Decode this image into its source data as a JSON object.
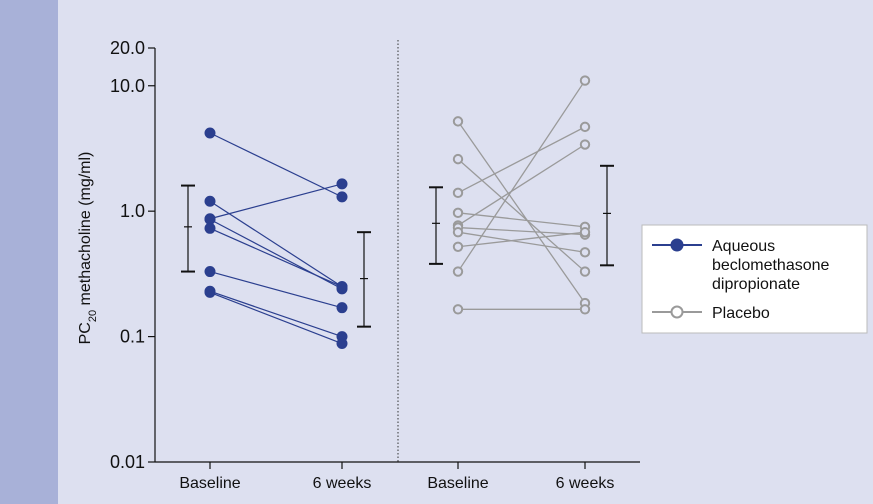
{
  "chart_data": {
    "type": "scatter",
    "ylabel": "PC20 methacholine (mg/ml)",
    "ylabel_main": "PC",
    "ylabel_sub": "20",
    "ylabel_rest": " methacholine (mg/ml)",
    "yscale": "log",
    "ylim": [
      0.01,
      20.0
    ],
    "yticks": [
      {
        "value": 0.01,
        "label": "0.01"
      },
      {
        "value": 0.1,
        "label": "0.1"
      },
      {
        "value": 1.0,
        "label": "1.0"
      },
      {
        "value": 10.0,
        "label": "10.0"
      },
      {
        "value": 20.0,
        "label": "20.0"
      }
    ],
    "x_categories": [
      "Baseline",
      "6 weeks",
      "Baseline",
      "6 weeks"
    ],
    "legend": {
      "position": "right"
    },
    "series": [
      {
        "name": "Aqueous beclomethasone dipropionate",
        "legend_lines": [
          "Aqueous",
          "beclomethasone",
          "dipropionate"
        ],
        "marker": "filled",
        "color": "#2b3f8f",
        "pairs": [
          [
            4.2,
            1.3
          ],
          [
            1.2,
            0.25
          ],
          [
            0.87,
            1.65
          ],
          [
            0.86,
            0.24
          ],
          [
            0.73,
            0.25
          ],
          [
            0.33,
            0.17
          ],
          [
            0.23,
            0.1
          ],
          [
            0.225,
            0.088
          ]
        ],
        "summary": {
          "baseline": {
            "mean": 0.75,
            "lower": 0.33,
            "upper": 1.6
          },
          "week6": {
            "mean": 0.29,
            "lower": 0.12,
            "upper": 0.68
          }
        }
      },
      {
        "name": "Placebo",
        "legend_lines": [
          "Placebo"
        ],
        "marker": "open",
        "color": "#9a9a9a",
        "pairs": [
          [
            5.2,
            0.185
          ],
          [
            2.6,
            0.33
          ],
          [
            1.4,
            4.7
          ],
          [
            0.97,
            0.75
          ],
          [
            0.77,
            3.4
          ],
          [
            0.74,
            0.65
          ],
          [
            0.68,
            0.47
          ],
          [
            0.52,
            0.68
          ],
          [
            0.33,
            11.0
          ],
          [
            0.165,
            0.165
          ]
        ],
        "summary": {
          "baseline": {
            "mean": 0.8,
            "lower": 0.38,
            "upper": 1.55
          },
          "week6": {
            "mean": 0.96,
            "lower": 0.37,
            "upper": 2.3
          }
        }
      }
    ]
  },
  "colors": {
    "background": "#dde0f0",
    "left_band": "#a8b1d8",
    "axis": "#111111"
  }
}
